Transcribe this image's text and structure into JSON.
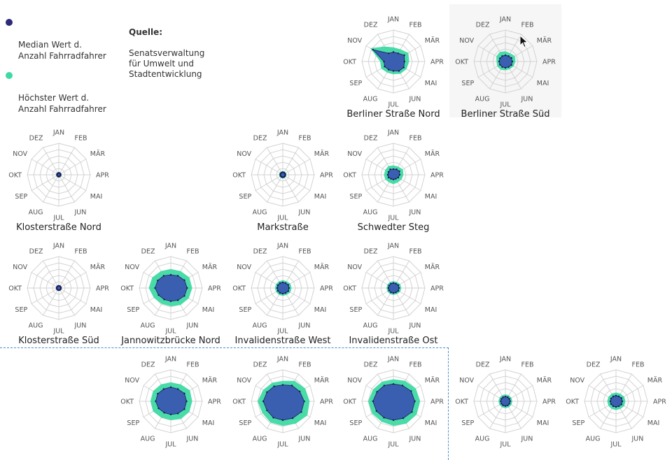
{
  "legend": [
    {
      "label": "Median Wert d.\nAnzahl Fahrradfahrer",
      "color": "#2d2a7a"
    },
    {
      "label": "Höchster Wert d.\nAnzahl Fahrradfahrer",
      "color": "#3fd9a3"
    }
  ],
  "source": {
    "title": "Quelle:",
    "text": "Senatsverwaltung\nfür Umwelt und\nStadtentwicklung"
  },
  "chart_data": {
    "type": "radar",
    "axes": [
      "JAN",
      "FEB",
      "MÄR",
      "APR",
      "MAI",
      "JUN",
      "JUL",
      "AUG",
      "SEP",
      "OKT",
      "NOV",
      "DEZ"
    ],
    "rlim": [
      0,
      1
    ],
    "rings": 5,
    "series_names": [
      "Median Wert d. Anzahl Fahrradfahrer",
      "Höchster Wert d. Anzahl Fahrradfahrer"
    ],
    "colors": {
      "median_fill": "#3b5fb0",
      "median_stroke": "#1a1a55",
      "max_fill": "#3fd9a3",
      "grid": "#d3d3d3",
      "label": "#555555"
    },
    "charts": [
      {
        "title": "Berliner Straße Nord",
        "highlight": false,
        "median": [
          0.3,
          0.3,
          0.4,
          0.35,
          0.38,
          0.35,
          0.3,
          0.3,
          0.32,
          0.3,
          0.75,
          0.3
        ],
        "max": [
          0.45,
          0.45,
          0.55,
          0.5,
          0.48,
          0.45,
          0.4,
          0.4,
          0.45,
          0.42,
          0.85,
          0.55
        ]
      },
      {
        "title": "Berliner Straße Süd",
        "highlight": true,
        "median": [
          0.2,
          0.2,
          0.22,
          0.22,
          0.22,
          0.2,
          0.2,
          0.2,
          0.2,
          0.2,
          0.2,
          0.2
        ],
        "max": [
          0.33,
          0.3,
          0.35,
          0.32,
          0.3,
          0.28,
          0.28,
          0.3,
          0.3,
          0.28,
          0.33,
          0.35
        ]
      },
      {
        "title": "Klosterstraße Nord",
        "highlight": false,
        "median": [
          0.06,
          0.06,
          0.06,
          0.06,
          0.06,
          0.06,
          0.06,
          0.06,
          0.06,
          0.06,
          0.06,
          0.06
        ],
        "max": [
          0.09,
          0.09,
          0.09,
          0.09,
          0.09,
          0.09,
          0.09,
          0.09,
          0.09,
          0.09,
          0.09,
          0.09
        ]
      },
      {
        "title": "Markstraße",
        "highlight": false,
        "median": [
          0.08,
          0.08,
          0.08,
          0.08,
          0.08,
          0.08,
          0.08,
          0.08,
          0.08,
          0.08,
          0.08,
          0.08
        ],
        "max": [
          0.12,
          0.12,
          0.12,
          0.12,
          0.12,
          0.12,
          0.12,
          0.12,
          0.12,
          0.12,
          0.12,
          0.12
        ]
      },
      {
        "title": "Schwedter Steg",
        "highlight": false,
        "median": [
          0.18,
          0.2,
          0.22,
          0.2,
          0.18,
          0.15,
          0.15,
          0.15,
          0.18,
          0.18,
          0.18,
          0.2
        ],
        "max": [
          0.3,
          0.3,
          0.35,
          0.32,
          0.3,
          0.28,
          0.3,
          0.28,
          0.3,
          0.3,
          0.3,
          0.32
        ]
      },
      {
        "title": "Klosterstraße Süd",
        "highlight": false,
        "median": [
          0.07,
          0.07,
          0.07,
          0.07,
          0.07,
          0.07,
          0.07,
          0.07,
          0.07,
          0.07,
          0.07,
          0.07
        ],
        "max": [
          0.09,
          0.09,
          0.09,
          0.09,
          0.09,
          0.09,
          0.09,
          0.09,
          0.09,
          0.09,
          0.09,
          0.09
        ]
      },
      {
        "title": "Jannowitzbrücke Nord",
        "highlight": false,
        "median": [
          0.42,
          0.45,
          0.5,
          0.52,
          0.5,
          0.45,
          0.42,
          0.42,
          0.45,
          0.5,
          0.48,
          0.45
        ],
        "max": [
          0.6,
          0.62,
          0.68,
          0.68,
          0.66,
          0.62,
          0.58,
          0.58,
          0.62,
          0.7,
          0.68,
          0.62
        ]
      },
      {
        "title": "Invalidenstraße West",
        "highlight": false,
        "median": [
          0.18,
          0.18,
          0.2,
          0.2,
          0.2,
          0.18,
          0.18,
          0.18,
          0.18,
          0.18,
          0.18,
          0.18
        ],
        "max": [
          0.25,
          0.25,
          0.28,
          0.28,
          0.28,
          0.25,
          0.25,
          0.25,
          0.25,
          0.25,
          0.25,
          0.25
        ]
      },
      {
        "title": "Invalidenstraße Ost",
        "highlight": false,
        "median": [
          0.16,
          0.16,
          0.18,
          0.18,
          0.18,
          0.16,
          0.16,
          0.16,
          0.16,
          0.16,
          0.16,
          0.16
        ],
        "max": [
          0.22,
          0.22,
          0.25,
          0.25,
          0.25,
          0.22,
          0.22,
          0.22,
          0.22,
          0.22,
          0.22,
          0.22
        ]
      },
      {
        "title": "",
        "highlight": false,
        "median": [
          0.45,
          0.45,
          0.5,
          0.5,
          0.5,
          0.45,
          0.42,
          0.42,
          0.45,
          0.48,
          0.48,
          0.45
        ],
        "max": [
          0.6,
          0.62,
          0.7,
          0.68,
          0.68,
          0.65,
          0.6,
          0.6,
          0.65,
          0.65,
          0.65,
          0.62
        ]
      },
      {
        "title": "",
        "highlight": false,
        "median": [
          0.52,
          0.58,
          0.62,
          0.68,
          0.68,
          0.62,
          0.6,
          0.6,
          0.58,
          0.62,
          0.58,
          0.55
        ],
        "max": [
          0.65,
          0.75,
          0.82,
          0.85,
          0.9,
          0.82,
          0.78,
          0.78,
          0.75,
          0.8,
          0.72,
          0.68
        ]
      },
      {
        "title": "",
        "highlight": false,
        "median": [
          0.55,
          0.58,
          0.65,
          0.68,
          0.68,
          0.62,
          0.6,
          0.6,
          0.62,
          0.65,
          0.6,
          0.58
        ],
        "max": [
          0.7,
          0.75,
          0.82,
          0.85,
          0.85,
          0.82,
          0.78,
          0.75,
          0.78,
          0.8,
          0.75,
          0.72
        ]
      },
      {
        "title": "",
        "highlight": false,
        "median": [
          0.15,
          0.15,
          0.15,
          0.15,
          0.15,
          0.15,
          0.15,
          0.15,
          0.15,
          0.15,
          0.15,
          0.15
        ],
        "max": [
          0.22,
          0.22,
          0.22,
          0.22,
          0.22,
          0.22,
          0.22,
          0.22,
          0.22,
          0.22,
          0.22,
          0.22
        ]
      },
      {
        "title": "",
        "highlight": false,
        "median": [
          0.18,
          0.18,
          0.2,
          0.2,
          0.2,
          0.18,
          0.18,
          0.18,
          0.18,
          0.18,
          0.18,
          0.18
        ],
        "max": [
          0.28,
          0.28,
          0.3,
          0.3,
          0.3,
          0.28,
          0.28,
          0.28,
          0.28,
          0.28,
          0.28,
          0.28
        ]
      }
    ]
  }
}
